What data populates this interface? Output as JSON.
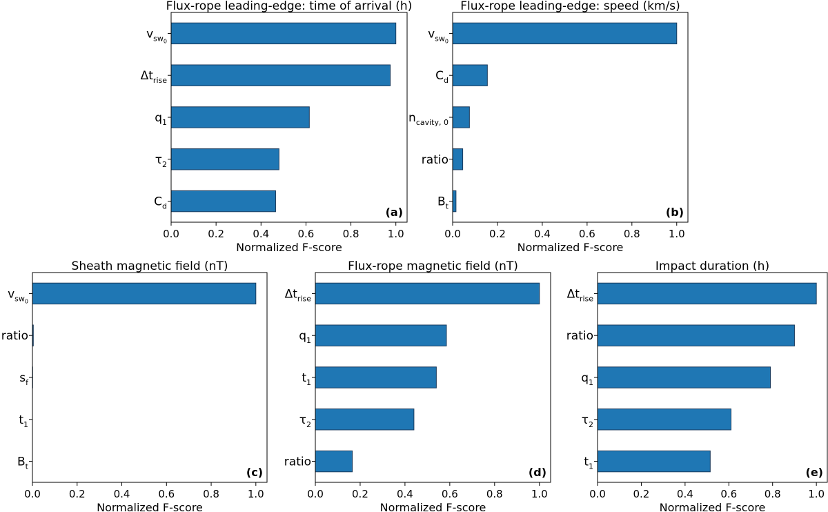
{
  "colors": {
    "bar": "#1f77b4",
    "bar_edge": "#1a3a5c",
    "axes": "#000000"
  },
  "chart_data": [
    {
      "type": "bar",
      "orientation": "horizontal",
      "title": "Flux-rope leading-edge: time of arrival (h)",
      "xlabel": "Normalized F-score",
      "panel_label": "(a)",
      "xlim": [
        0,
        1.05
      ],
      "xticks": [
        "0.0",
        "0.2",
        "0.4",
        "0.6",
        "0.8",
        "1.0"
      ],
      "categories": [
        {
          "base": "v",
          "sub": "sw",
          "subsub": "0"
        },
        {
          "base": "Δt",
          "sub": "rise"
        },
        {
          "base": "q",
          "sub": "1"
        },
        {
          "base": "τ",
          "sub": "2"
        },
        {
          "base": "C",
          "sub": "d"
        }
      ],
      "values": [
        1.0,
        0.975,
        0.615,
        0.48,
        0.465
      ]
    },
    {
      "type": "bar",
      "orientation": "horizontal",
      "title": "Flux-rope leading-edge: speed (km/s)",
      "xlabel": "Normalized F-score",
      "panel_label": "(b)",
      "xlim": [
        0,
        1.05
      ],
      "xticks": [
        "0.0",
        "0.2",
        "0.4",
        "0.6",
        "0.8",
        "1.0"
      ],
      "categories": [
        {
          "base": "v",
          "sub": "sw",
          "subsub": "0"
        },
        {
          "base": "C",
          "sub": "d"
        },
        {
          "base": "n",
          "sub": "cavity, 0"
        },
        {
          "base": "ratio"
        },
        {
          "base": "B",
          "sub": "t"
        }
      ],
      "values": [
        1.0,
        0.155,
        0.075,
        0.045,
        0.015
      ]
    },
    {
      "type": "bar",
      "orientation": "horizontal",
      "title": "Sheath magnetic field (nT)",
      "xlabel": "Normalized F-score",
      "panel_label": "(c)",
      "xlim": [
        0,
        1.05
      ],
      "xticks": [
        "0.0",
        "0.2",
        "0.4",
        "0.6",
        "0.8",
        "1.0"
      ],
      "categories": [
        {
          "base": "v",
          "sub": "sw",
          "subsub": "0"
        },
        {
          "base": "ratio"
        },
        {
          "base": "s",
          "sub": "f"
        },
        {
          "base": "t",
          "sub": "1"
        },
        {
          "base": "B",
          "sub": "t"
        }
      ],
      "values": [
        1.0,
        0.004,
        0.001,
        0.0,
        0.0
      ]
    },
    {
      "type": "bar",
      "orientation": "horizontal",
      "title": "Flux-rope magnetic field (nT)",
      "xlabel": "Normalized F-score",
      "panel_label": "(d)",
      "xlim": [
        0,
        1.05
      ],
      "xticks": [
        "0.0",
        "0.2",
        "0.4",
        "0.6",
        "0.8",
        "1.0"
      ],
      "categories": [
        {
          "base": "Δt",
          "sub": "rise"
        },
        {
          "base": "q",
          "sub": "1"
        },
        {
          "base": "t",
          "sub": "1"
        },
        {
          "base": "τ",
          "sub": "2"
        },
        {
          "base": "ratio"
        }
      ],
      "values": [
        1.0,
        0.585,
        0.54,
        0.44,
        0.165
      ]
    },
    {
      "type": "bar",
      "orientation": "horizontal",
      "title": "Impact duration (h)",
      "xlabel": "Normalized F-score",
      "panel_label": "(e)",
      "xlim": [
        0,
        1.05
      ],
      "xticks": [
        "0.0",
        "0.2",
        "0.4",
        "0.6",
        "0.8",
        "1.0"
      ],
      "categories": [
        {
          "base": "Δt",
          "sub": "rise"
        },
        {
          "base": "ratio"
        },
        {
          "base": "q",
          "sub": "1"
        },
        {
          "base": "τ",
          "sub": "2"
        },
        {
          "base": "t",
          "sub": "1"
        }
      ],
      "values": [
        1.0,
        0.9,
        0.79,
        0.61,
        0.515
      ]
    }
  ]
}
